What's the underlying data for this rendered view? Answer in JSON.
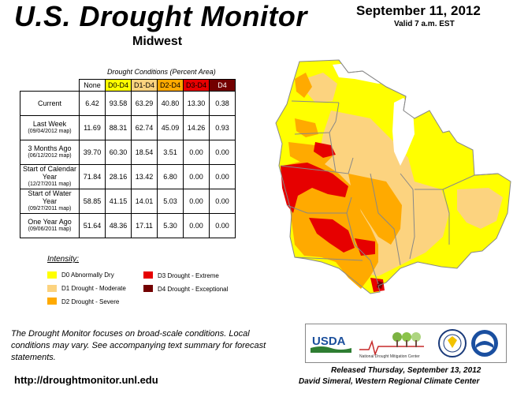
{
  "header": {
    "title": "U.S. Drought Monitor",
    "region": "Midwest",
    "date": "September 11, 2012",
    "valid": "Valid 7 a.m. EST"
  },
  "table": {
    "caption": "Drought Conditions (Percent Area)",
    "columns": [
      "None",
      "D0-D4",
      "D1-D4",
      "D2-D4",
      "D3-D4",
      "D4"
    ],
    "column_colors": [
      "#ffffff",
      "#ffff00",
      "#fcd37f",
      "#ffaa00",
      "#e60000",
      "#730000"
    ],
    "rows": [
      {
        "label": "Current",
        "sub": "",
        "values": [
          "6.42",
          "93.58",
          "63.29",
          "40.80",
          "13.30",
          "0.38"
        ]
      },
      {
        "label": "Last Week",
        "sub": "(09/04/2012 map)",
        "values": [
          "11.69",
          "88.31",
          "62.74",
          "45.09",
          "14.26",
          "0.93"
        ]
      },
      {
        "label": "3 Months Ago",
        "sub": "(06/12/2012 map)",
        "values": [
          "39.70",
          "60.30",
          "18.54",
          "3.51",
          "0.00",
          "0.00"
        ]
      },
      {
        "label": "Start of Calendar Year",
        "sub": "(12/27/2011 map)",
        "values": [
          "71.84",
          "28.16",
          "13.42",
          "6.80",
          "0.00",
          "0.00"
        ]
      },
      {
        "label": "Start of Water Year",
        "sub": "(09/27/2011 map)",
        "values": [
          "58.85",
          "41.15",
          "14.01",
          "5.03",
          "0.00",
          "0.00"
        ]
      },
      {
        "label": "One Year Ago",
        "sub": "(09/06/2011 map)",
        "values": [
          "51.64",
          "48.36",
          "17.11",
          "5.30",
          "0.00",
          "0.00"
        ]
      }
    ]
  },
  "legend": {
    "title": "Intensity:",
    "items": [
      {
        "label": "D0 Abnormally Dry",
        "color": "#ffff00"
      },
      {
        "label": "D1 Drought - Moderate",
        "color": "#fcd37f"
      },
      {
        "label": "D2 Drought - Severe",
        "color": "#ffaa00"
      },
      {
        "label": "D3 Drought - Extreme",
        "color": "#e60000"
      },
      {
        "label": "D4 Drought - Exceptional",
        "color": "#730000"
      }
    ]
  },
  "footer": {
    "statement": "The Drought Monitor focuses on broad-scale conditions. Local conditions may vary. See accompanying text summary for forecast statements.",
    "url": "http://droughtmonitor.unl.edu",
    "released": "Released Thursday, September 13, 2012",
    "author": "David Simeral, Western Regional Climate Center"
  },
  "logos": {
    "usda": "USDA",
    "ndmc": "National Drought Mitigation Center"
  },
  "map_colors": {
    "none": "#ffffff",
    "d0": "#ffff00",
    "d1": "#fcd37f",
    "d2": "#ffaa00",
    "d3": "#e60000",
    "d4": "#730000",
    "border": "#888888",
    "lake": "#ffffff"
  }
}
